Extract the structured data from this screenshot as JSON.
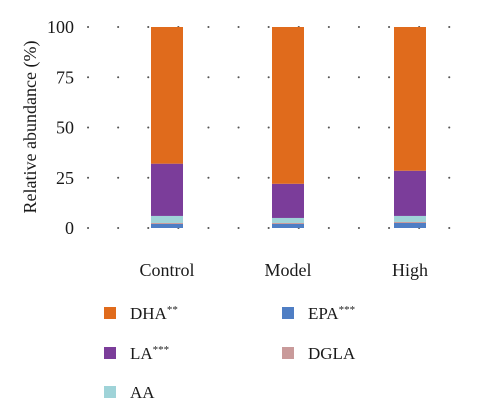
{
  "chart_data": {
    "type": "bar",
    "stacked": true,
    "categories": [
      "Control",
      "Model",
      "High"
    ],
    "ylabel": "Relative abundance (%)",
    "xlabel": "",
    "ylim": [
      0,
      100
    ],
    "yticks": [
      0,
      25,
      50,
      75,
      100
    ],
    "grid": "dotted horizontal",
    "legend_position": "bottom",
    "series": [
      {
        "name": "EPA",
        "sig": "***",
        "color": "#4f7ec4",
        "values": [
          2,
          2,
          2.5
        ]
      },
      {
        "name": "DGLA",
        "sig": "",
        "color": "#c99a9a",
        "values": [
          0.5,
          0.5,
          0.5
        ]
      },
      {
        "name": "AA",
        "sig": "",
        "color": "#9fd3d8",
        "values": [
          3.5,
          2.5,
          3
        ]
      },
      {
        "name": "LA",
        "sig": "***",
        "color": "#7b3d9a",
        "values": [
          26,
          17,
          22.5
        ]
      },
      {
        "name": "DHA",
        "sig": "**",
        "color": "#e06b1c",
        "values": [
          68,
          78,
          71.5
        ]
      }
    ],
    "legend_order": [
      "DHA",
      "EPA",
      "LA",
      "DGLA",
      "AA"
    ]
  }
}
